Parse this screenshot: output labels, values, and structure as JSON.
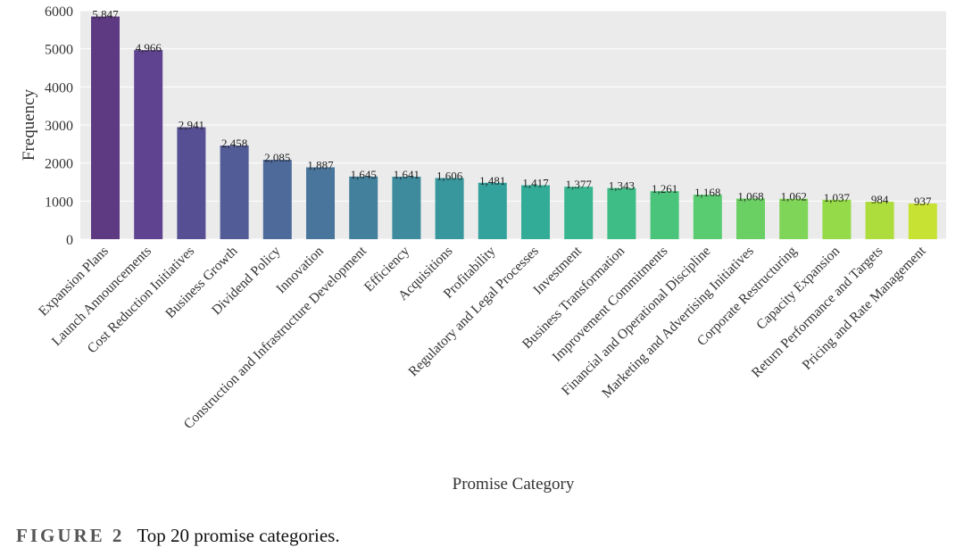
{
  "chart_data": {
    "type": "bar",
    "title": "",
    "xlabel": "Promise Category",
    "ylabel": "Frequency",
    "ylim": [
      0,
      6000
    ],
    "yticks": [
      0,
      1000,
      2000,
      3000,
      4000,
      5000,
      6000
    ],
    "grid": true,
    "categories": [
      "Expansion Plans",
      "Launch Announcements",
      "Cost Reduction Initiatives",
      "Business Growth",
      "Dividend Policy",
      "Innovation",
      "Construction and Infrastructure Development",
      "Efficiency",
      "Acquisitions",
      "Profitability",
      "Regulatory and Legal Processes",
      "Investment",
      "Business Transformation",
      "Improvement Commitments",
      "Financial and Operational Discipline",
      "Marketing and Advertising Initiatives",
      "Corporate Restructuring",
      "Capacity Expansion",
      "Return Performance and Targets",
      "Pricing and Rate Management"
    ],
    "values": [
      5847,
      4966,
      2941,
      2458,
      2085,
      1887,
      1645,
      1641,
      1606,
      1481,
      1417,
      1377,
      1343,
      1261,
      1168,
      1068,
      1062,
      1037,
      984,
      937
    ],
    "value_labels": [
      "5,847",
      "4,966",
      "2,941",
      "2,458",
      "2,085",
      "1,887",
      "1,645",
      "1,641",
      "1,606",
      "1,481",
      "1,417",
      "1,377",
      "1,343",
      "1,261",
      "1,168",
      "1,068",
      "1,062",
      "1,037",
      "984",
      "937"
    ],
    "colors": [
      "#5e3a82",
      "#5f4390",
      "#574f94",
      "#525d98",
      "#4e6a9a",
      "#49759c",
      "#43809c",
      "#3d8b9d",
      "#37979d",
      "#34a29c",
      "#33ac97",
      "#36b58f",
      "#3ebd86",
      "#4ac47b",
      "#59cb70",
      "#6ad064",
      "#7fd557",
      "#95da49",
      "#acdd3c",
      "#c8e233"
    ]
  },
  "caption": {
    "figure_label": "FIGURE 2",
    "text": "Top 20 promise categories."
  }
}
